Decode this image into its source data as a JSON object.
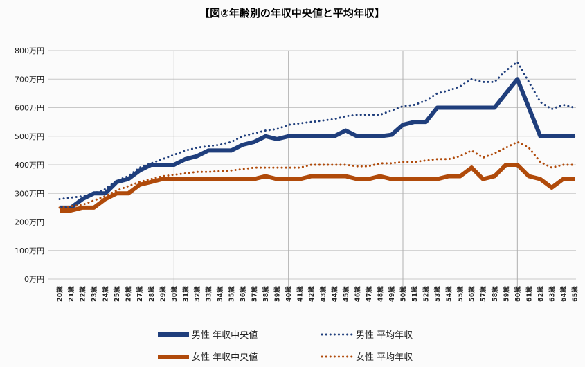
{
  "chart_data": {
    "type": "line",
    "title": "【図②年齢別の年収中央値と平均年収】",
    "xlabel": "",
    "ylabel": "",
    "ylim": [
      0,
      800
    ],
    "grid": true,
    "legend_position": "bottom",
    "y_ticks": [
      "0万円",
      "100万円",
      "200万円",
      "300万円",
      "400万円",
      "500万円",
      "600万円",
      "700万円",
      "800万円"
    ],
    "y_tick_values": [
      0,
      100,
      200,
      300,
      400,
      500,
      600,
      700,
      800
    ],
    "categories": [
      "20歳",
      "21歳",
      "22歳",
      "23歳",
      "24歳",
      "25歳",
      "26歳",
      "27歳",
      "28歳",
      "29歳",
      "30歳",
      "31歳",
      "32歳",
      "33歳",
      "34歳",
      "35歳",
      "36歳",
      "37歳",
      "38歳",
      "39歳",
      "40歳",
      "41歳",
      "42歳",
      "43歳",
      "44歳",
      "45歳",
      "46歳",
      "47歳",
      "48歳",
      "49歳",
      "50歳",
      "51歳",
      "52歳",
      "53歳",
      "54歳",
      "55歳",
      "56歳",
      "57歳",
      "58歳",
      "59歳",
      "60歳",
      "61歳",
      "62歳",
      "63歳",
      "64歳",
      "65歳"
    ],
    "series": [
      {
        "name": "男性 年収中央値",
        "color": "#1f3e7c",
        "style": "solid",
        "values": [
          250,
          250,
          280,
          300,
          300,
          340,
          350,
          380,
          400,
          400,
          400,
          420,
          430,
          450,
          450,
          450,
          470,
          480,
          500,
          490,
          500,
          500,
          500,
          500,
          500,
          520,
          500,
          500,
          500,
          505,
          540,
          550,
          550,
          600,
          600,
          600,
          600,
          600,
          600,
          650,
          700,
          600,
          500,
          500,
          500,
          500
        ]
      },
      {
        "name": "男性 平均年収",
        "color": "#1f3e7c",
        "style": "dotted",
        "values": [
          280,
          285,
          290,
          300,
          315,
          345,
          360,
          390,
          405,
          420,
          435,
          450,
          460,
          465,
          470,
          480,
          500,
          510,
          520,
          525,
          540,
          545,
          550,
          555,
          560,
          570,
          575,
          575,
          575,
          590,
          605,
          610,
          625,
          650,
          660,
          675,
          700,
          690,
          690,
          730,
          760,
          690,
          620,
          595,
          610,
          600
        ]
      },
      {
        "name": "女性 年収中央値",
        "color": "#b04a0a",
        "style": "solid",
        "values": [
          240,
          240,
          250,
          250,
          280,
          300,
          300,
          330,
          340,
          350,
          350,
          350,
          350,
          350,
          350,
          350,
          350,
          350,
          360,
          350,
          350,
          350,
          360,
          360,
          360,
          360,
          350,
          350,
          360,
          350,
          350,
          350,
          350,
          350,
          360,
          360,
          390,
          350,
          360,
          400,
          400,
          360,
          350,
          320,
          350,
          350
        ]
      },
      {
        "name": "女性 平均年収",
        "color": "#b04a0a",
        "style": "dotted",
        "values": [
          250,
          255,
          260,
          275,
          290,
          310,
          325,
          340,
          350,
          360,
          365,
          370,
          375,
          375,
          378,
          380,
          385,
          390,
          390,
          390,
          390,
          390,
          400,
          400,
          400,
          400,
          395,
          395,
          405,
          405,
          410,
          410,
          415,
          420,
          420,
          430,
          450,
          425,
          440,
          460,
          480,
          460,
          410,
          390,
          400,
          400
        ]
      }
    ]
  }
}
